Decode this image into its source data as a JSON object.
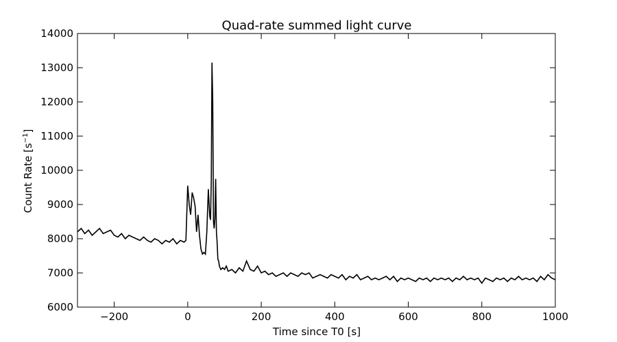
{
  "chart_data": {
    "type": "line",
    "title": "Quad-rate summed light curve",
    "xlabel": "Time since T0 [s]",
    "ylabel_text": "Count Rate [s",
    "ylabel_sup": "−1",
    "ylabel_close": "]",
    "xlim": [
      -300,
      1000
    ],
    "ylim": [
      6000,
      14000
    ],
    "xticks": [
      -200,
      0,
      200,
      400,
      600,
      800,
      1000
    ],
    "yticks": [
      6000,
      7000,
      8000,
      9000,
      10000,
      11000,
      12000,
      13000,
      14000
    ],
    "xtick_labels": [
      "−200",
      "0",
      "200",
      "400",
      "600",
      "800",
      "1000"
    ],
    "ytick_labels": [
      "6000",
      "7000",
      "8000",
      "9000",
      "10000",
      "11000",
      "12000",
      "13000",
      "14000"
    ],
    "grid": false,
    "line_color": "#000000",
    "series": [
      {
        "x": [
          -300,
          -290,
          -280,
          -270,
          -260,
          -250,
          -240,
          -230,
          -220,
          -210,
          -200,
          -190,
          -180,
          -170,
          -160,
          -150,
          -140,
          -130,
          -120,
          -110,
          -100,
          -90,
          -80,
          -70,
          -60,
          -50,
          -40,
          -30,
          -20,
          -10,
          -5,
          0,
          4,
          8,
          12,
          16,
          20,
          24,
          28,
          32,
          36,
          40,
          44,
          48,
          52,
          56,
          60,
          62,
          64,
          66,
          68,
          70,
          72,
          74,
          76,
          78,
          80,
          82,
          84,
          86,
          88,
          90,
          95,
          100,
          105,
          110,
          120,
          130,
          140,
          150,
          160,
          170,
          180,
          190,
          200,
          210,
          220,
          230,
          240,
          250,
          260,
          270,
          280,
          290,
          300,
          310,
          320,
          330,
          340,
          350,
          360,
          370,
          380,
          390,
          400,
          410,
          420,
          430,
          440,
          450,
          460,
          470,
          480,
          490,
          500,
          510,
          520,
          530,
          540,
          550,
          560,
          570,
          580,
          590,
          600,
          610,
          620,
          630,
          640,
          650,
          660,
          670,
          680,
          690,
          700,
          710,
          720,
          730,
          740,
          750,
          760,
          770,
          780,
          790,
          800,
          810,
          820,
          830,
          840,
          850,
          860,
          870,
          880,
          890,
          900,
          910,
          920,
          930,
          940,
          950,
          960,
          970,
          980,
          990,
          1000
        ],
        "y": [
          8200,
          8300,
          8150,
          8250,
          8100,
          8200,
          8300,
          8150,
          8200,
          8250,
          8100,
          8050,
          8150,
          8000,
          8100,
          8050,
          8000,
          7950,
          8050,
          7950,
          7900,
          8000,
          7950,
          7850,
          7950,
          7900,
          8000,
          7850,
          7950,
          7900,
          7950,
          9550,
          9000,
          8700,
          9350,
          9200,
          8950,
          8200,
          8700,
          8100,
          7700,
          7550,
          7600,
          7550,
          8200,
          9450,
          8650,
          8550,
          9700,
          13150,
          12050,
          8500,
          8300,
          8600,
          9750,
          8200,
          7900,
          7400,
          7350,
          7200,
          7150,
          7100,
          7150,
          7100,
          7200,
          7050,
          7100,
          7000,
          7150,
          7050,
          7350,
          7100,
          7050,
          7200,
          7000,
          7050,
          6950,
          7000,
          6900,
          6950,
          7000,
          6900,
          7000,
          6950,
          6900,
          7000,
          6950,
          7000,
          6850,
          6900,
          6950,
          6900,
          6850,
          6950,
          6900,
          6850,
          6950,
          6800,
          6900,
          6850,
          6950,
          6800,
          6850,
          6900,
          6800,
          6850,
          6800,
          6850,
          6900,
          6800,
          6900,
          6750,
          6850,
          6800,
          6850,
          6800,
          6750,
          6850,
          6800,
          6850,
          6750,
          6850,
          6800,
          6850,
          6800,
          6850,
          6750,
          6850,
          6800,
          6900,
          6800,
          6850,
          6800,
          6850,
          6700,
          6850,
          6800,
          6750,
          6850,
          6800,
          6850,
          6750,
          6850,
          6800,
          6900,
          6800,
          6850,
          6800,
          6850,
          6750,
          6900,
          6800,
          6950,
          6850,
          6800
        ]
      }
    ]
  }
}
